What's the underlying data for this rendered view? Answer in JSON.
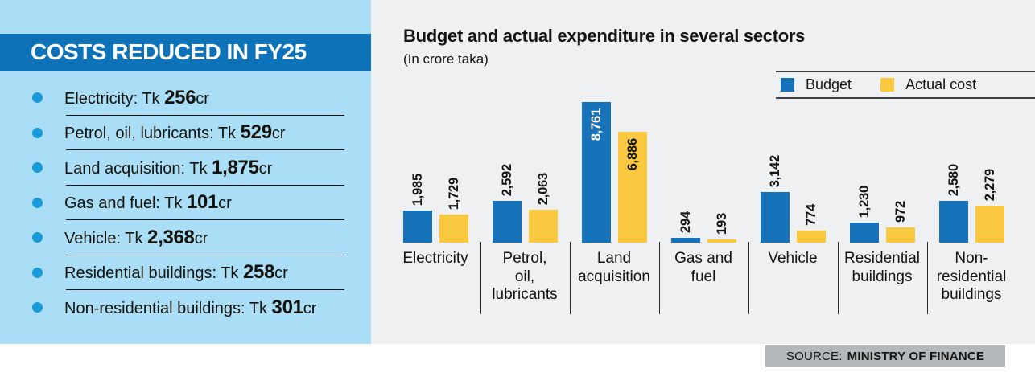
{
  "sidebar": {
    "title": "COSTS REDUCED IN FY25",
    "items": [
      {
        "label": "Electricity: Tk ",
        "value": "256",
        "suffix": "cr"
      },
      {
        "label": "Petrol, oil, lubricants: Tk ",
        "value": "529",
        "suffix": "cr"
      },
      {
        "label": "Land acquisition: Tk ",
        "value": "1,875",
        "suffix": "cr"
      },
      {
        "label": "Gas and fuel: Tk ",
        "value": "101",
        "suffix": "cr"
      },
      {
        "label": "Vehicle: Tk ",
        "value": "2,368",
        "suffix": "cr"
      },
      {
        "label": "Residential buildings: Tk ",
        "value": "258",
        "suffix": "cr"
      },
      {
        "label": "Non-residential buildings: Tk ",
        "value": "301",
        "suffix": "cr"
      }
    ],
    "bullet_color": "#179bd8",
    "band_color": "#0e72b9",
    "panel_color": "#aadef6"
  },
  "chart_data": {
    "type": "bar",
    "title": "Budget and actual expenditure in several sectors",
    "subtitle": "(In crore taka)",
    "categories": [
      "Electricity",
      "Petrol, oil, lubricants",
      "Land acquisition",
      "Gas and fuel",
      "Vehicle",
      "Residential buildings",
      "Non-residential buildings"
    ],
    "category_lines": [
      [
        "Electricity"
      ],
      [
        "Petrol,",
        "oil,",
        "lubricants"
      ],
      [
        "Land",
        "acquisition"
      ],
      [
        "Gas and",
        "fuel"
      ],
      [
        "Vehicle"
      ],
      [
        "Residential",
        "buildings"
      ],
      [
        "Non-",
        "residential",
        "buildings"
      ]
    ],
    "series": [
      {
        "name": "Budget",
        "color": "#1673b9",
        "values": [
          1985,
          2592,
          8761,
          294,
          3142,
          1230,
          2580
        ],
        "value_labels": [
          "1,985",
          "2,592",
          "8,761",
          "294",
          "3,142",
          "1,230",
          "2,580"
        ]
      },
      {
        "name": "Actual cost",
        "color": "#fbc93f",
        "values": [
          1729,
          2063,
          6886,
          193,
          774,
          972,
          2279
        ],
        "value_labels": [
          "1,729",
          "2,063",
          "6,886",
          "193",
          "774",
          "972",
          "2,279"
        ]
      }
    ],
    "ylim": [
      0,
      8761
    ],
    "grid": false,
    "legend_position": "top-right",
    "unit": "crore taka"
  },
  "source": {
    "prefix": "SOURCE:",
    "name": "MINISTRY OF FINANCE"
  }
}
